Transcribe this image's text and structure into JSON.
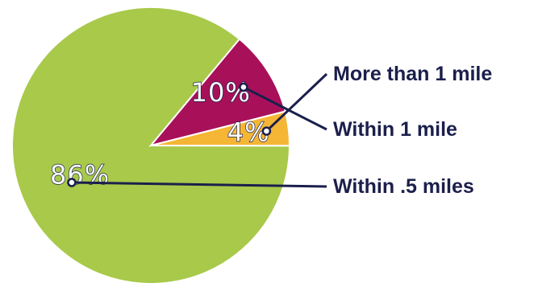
{
  "chart_data": {
    "type": "pie",
    "title": "",
    "slices": [
      {
        "label": "Within .5 miles",
        "value": 86,
        "display": "86%",
        "color": "#a8c94a"
      },
      {
        "label": "More than 1 mile",
        "value": 4,
        "display": "4%",
        "color": "#f5b635"
      },
      {
        "label": "Within 1 mile",
        "value": 10,
        "display": "10%",
        "color": "#a8105a"
      }
    ],
    "legend_placement": "right",
    "label_color": "#1b1f4b"
  }
}
